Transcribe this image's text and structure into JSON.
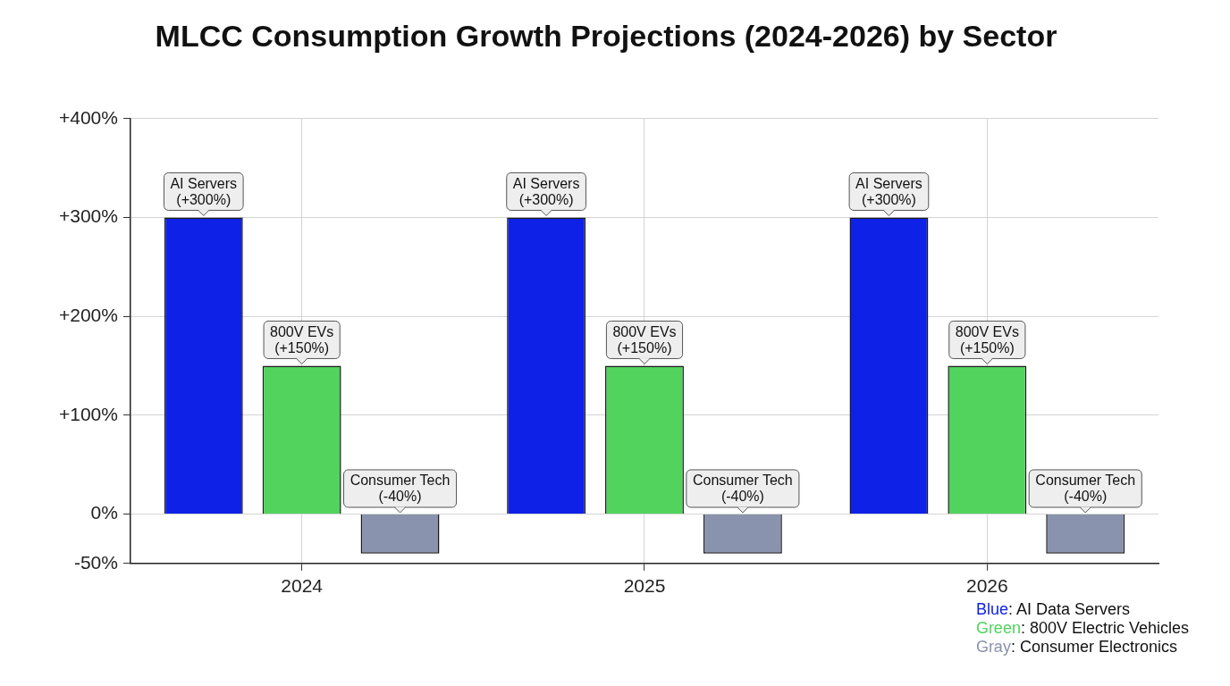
{
  "chart_data": {
    "type": "bar",
    "title": "MLCC Consumption Growth Projections (2024-2026) by Sector",
    "categories": [
      "2024",
      "2025",
      "2026"
    ],
    "series": [
      {
        "name": "Blue: AI Data Servers",
        "color": "#0d22e6",
        "values": [
          300,
          300,
          300
        ],
        "value_labels": [
          "AI Servers\n(+300%)",
          "AI Servers\n(+300%)",
          "AI Servers\n(+300%)"
        ]
      },
      {
        "name": "Green: 800V Electric Vehicles",
        "color": "#52d35e",
        "values": [
          150,
          150,
          150
        ],
        "value_labels": [
          "800V EVs\n(+150%)",
          "800V EVs\n(+150%)",
          "800V EVs\n(+150%)"
        ]
      },
      {
        "name": "Gray: Consumer Electronics",
        "color": "#8a93ae",
        "values": [
          -40,
          -40,
          -40
        ],
        "value_labels": [
          "Consumer Tech\n(-40%)",
          "Consumer Tech\n(-40%)",
          "Consumer Tech\n(-40%)"
        ]
      }
    ],
    "ylim": [
      -50,
      400
    ],
    "yticks": [
      {
        "value": -50,
        "label": "-50%"
      },
      {
        "value": 0,
        "label": "0%"
      },
      {
        "value": 100,
        "label": "+100%"
      },
      {
        "value": 200,
        "label": "+200%"
      },
      {
        "value": 300,
        "label": "+300%"
      },
      {
        "value": 400,
        "label": "+400%"
      }
    ],
    "grid": true,
    "legend": "bottom right"
  }
}
